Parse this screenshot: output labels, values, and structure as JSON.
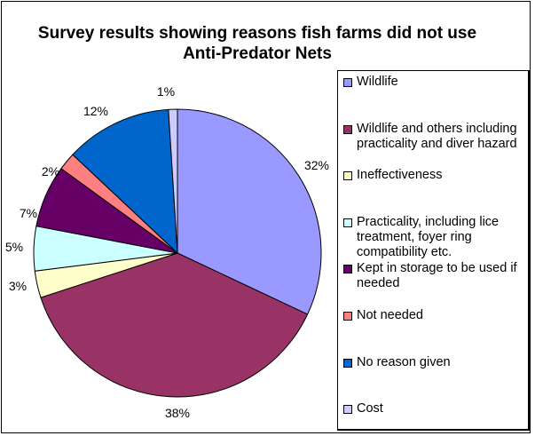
{
  "chart_data": {
    "type": "pie",
    "title": "Survey results showing reasons fish farms did not use Anti-Predator Nets",
    "legend_position": "right",
    "start_angle": "12 o'clock, clockwise",
    "slices": [
      {
        "label": "Wildlife",
        "value": 32,
        "data_label": "32%",
        "color": "#9999FF"
      },
      {
        "label": "Wildlife and others including practicality and diver hazard",
        "value": 38,
        "data_label": "38%",
        "color": "#993366"
      },
      {
        "label": "Ineffectiveness",
        "value": 3,
        "data_label": "3%",
        "color": "#FFFFCC"
      },
      {
        "label": "Practicality, including lice treatment, foyer ring compatibility etc.",
        "value": 5,
        "data_label": "5%",
        "color": "#CCFFFF"
      },
      {
        "label": "Kept in storage to be used if needed",
        "value": 7,
        "data_label": "7%",
        "color": "#660066"
      },
      {
        "label": "Not needed",
        "value": 2,
        "data_label": "2%",
        "color": "#FF8080"
      },
      {
        "label": "No reason given",
        "value": 12,
        "data_label": "12%",
        "color": "#0066CC"
      },
      {
        "label": "Cost",
        "value": 1,
        "data_label": "1%",
        "color": "#CCCCFF"
      }
    ]
  }
}
